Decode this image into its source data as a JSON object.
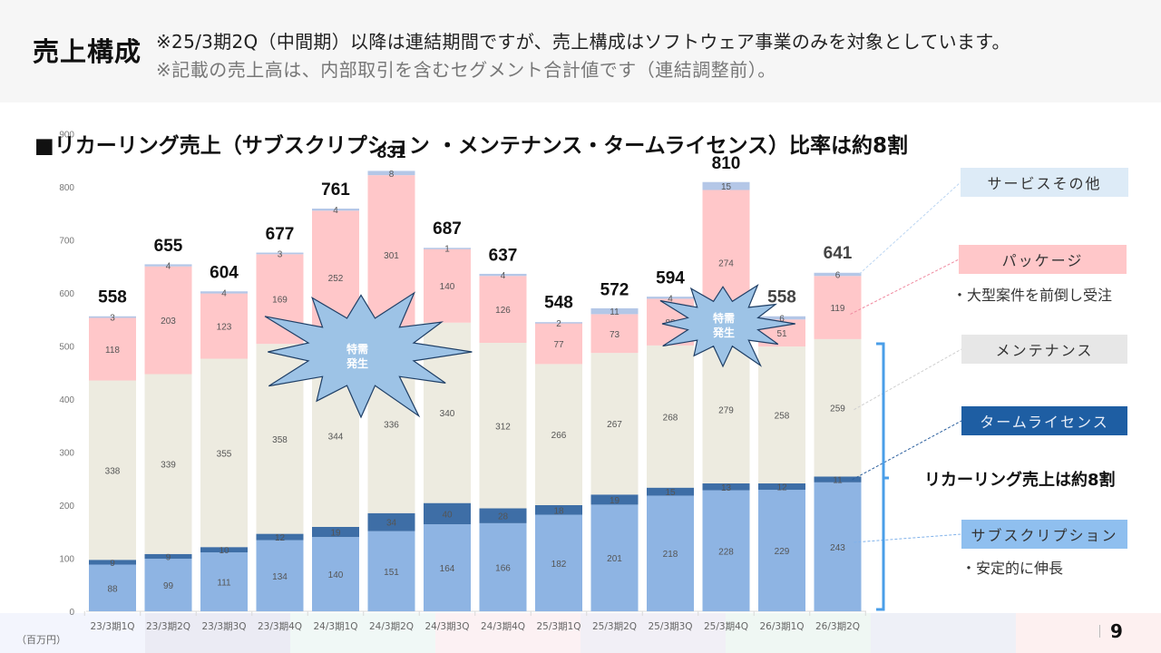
{
  "header": {
    "title": "売上構成",
    "note_1": "※25/3期2Q（中間期）以降は連結期間ですが、売上構成はソフトウェア事業のみを対象としています。",
    "note_2": "※記載の売上高は、内部取引を含むセグメント合計値です（連結調整前）。"
  },
  "chart_heading": "■リカーリング売上（サブスクリプション ・メンテナンス・タームライセンス）比率は約8割",
  "unit_label": "（百万円）",
  "page_number": "9",
  "colors": {
    "subscription": "#8eb4e3",
    "term_license": "#3e6ea6",
    "maintenance": "#edebe0",
    "package": "#ffc7c9",
    "service_other": "#b4c7e7",
    "burst_fill": "#9dc3e6",
    "burst_stroke": "#1f3f66",
    "bracket": "#4a9ee8"
  },
  "legend": {
    "service_other": "サービスその他",
    "package": "パッケージ",
    "package_note": "・大型案件を前倒し受注",
    "maintenance": "メンテナンス",
    "term_license": "タームライセンス",
    "recurring_note": "リカーリング売上は約8割",
    "subscription": "サブスクリプション",
    "subscription_note": "・安定的に伸長"
  },
  "callouts": [
    {
      "text_line1": "特需",
      "text_line2": "発生",
      "near": "24/3期1Q-24/3期3Q"
    },
    {
      "text_line1": "特需",
      "text_line2": "発生",
      "near": "25/3期3Q-26/3期1Q"
    }
  ],
  "chart_data": {
    "type": "bar",
    "stacked": true,
    "title": "リカーリング売上（サブスクリプション ・メンテナンス・タームライセンス）比率は約8割",
    "xlabel": "",
    "ylabel": "（百万円）",
    "ylim": [
      0,
      900
    ],
    "yticks": [
      0,
      100,
      200,
      300,
      400,
      500,
      600,
      700,
      800,
      900
    ],
    "grid": false,
    "categories": [
      "23/3期1Q",
      "23/3期2Q",
      "23/3期3Q",
      "23/3期4Q",
      "24/3期1Q",
      "24/3期2Q",
      "24/3期3Q",
      "24/3期4Q",
      "25/3期1Q",
      "25/3期2Q",
      "25/3期3Q",
      "25/3期4Q",
      "26/3期1Q",
      "26/3期2Q"
    ],
    "series": [
      {
        "name": "サブスクリプション",
        "key": "subscription",
        "values": [
          88,
          99,
          111,
          134,
          140,
          151,
          164,
          166,
          182,
          201,
          218,
          228,
          229,
          243
        ]
      },
      {
        "name": "タームライセンス",
        "key": "term_license",
        "values": [
          9,
          9,
          10,
          12,
          19,
          34,
          40,
          28,
          18,
          19,
          15,
          13,
          12,
          11
        ]
      },
      {
        "name": "メンテナンス",
        "key": "maintenance",
        "values": [
          338,
          339,
          355,
          358,
          344,
          336,
          340,
          312,
          266,
          267,
          268,
          279,
          258,
          259
        ]
      },
      {
        "name": "パッケージ",
        "key": "package",
        "values": [
          118,
          203,
          123,
          169,
          252,
          301,
          140,
          126,
          77,
          73,
          88,
          274,
          51,
          119
        ]
      },
      {
        "name": "サービスその他",
        "key": "service_other",
        "values": [
          3,
          4,
          4,
          3,
          4,
          8,
          1,
          4,
          2,
          11,
          4,
          15,
          6,
          6
        ]
      }
    ],
    "totals": [
      558,
      655,
      604,
      677,
      761,
      831,
      687,
      637,
      548,
      572,
      594,
      810,
      558,
      641
    ],
    "legend_position": "right"
  }
}
